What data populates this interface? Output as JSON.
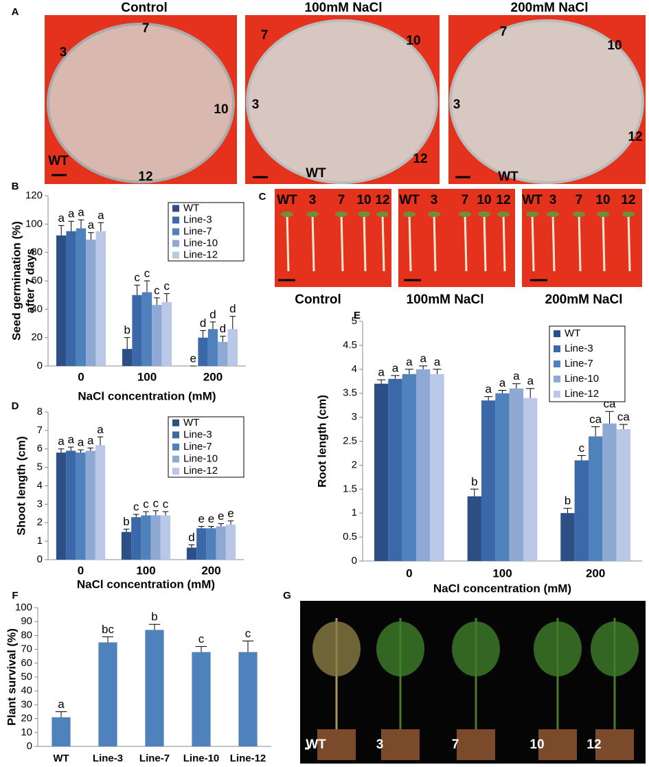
{
  "panel_labels": [
    "A",
    "B",
    "C",
    "D",
    "E",
    "F",
    "G"
  ],
  "photos": {
    "A": {
      "titles": [
        "Control",
        "100mM NaCl",
        "200mM NaCl"
      ],
      "plates": [
        [
          "7",
          "3",
          "10",
          "WT",
          "12"
        ],
        [
          "7",
          "10",
          "3",
          "12",
          "WT"
        ],
        [
          "7",
          "10",
          "3",
          "12",
          "WT"
        ]
      ]
    },
    "C": {
      "labels": [
        [
          "WT",
          "3",
          "7",
          "10",
          "12"
        ],
        [
          "WT",
          "3",
          "7",
          "10",
          "12"
        ],
        [
          "WT",
          "3",
          "7",
          "10",
          "12"
        ]
      ],
      "captions": [
        "Control",
        "100mM NaCl",
        "200mM NaCl"
      ]
    },
    "G": {
      "labels": [
        "WT",
        "3",
        "7",
        "10",
        "12"
      ]
    }
  },
  "chart_data": [
    {
      "type": "bar",
      "ylabel": [
        "Seed germination (%)",
        "after 7 days"
      ],
      "xlabel": "NaCl concentration (mM)",
      "categories": [
        "0",
        "100",
        "200"
      ],
      "ylim": [
        0,
        120
      ],
      "yticks": [
        0,
        20,
        40,
        60,
        80,
        100,
        120
      ],
      "legend": "upper right",
      "series": [
        {
          "name": "WT",
          "color": "#2e4f86",
          "values": [
            92,
            12,
            0
          ],
          "errors": [
            7,
            8,
            0
          ],
          "letters": [
            "a",
            "b",
            "e"
          ]
        },
        {
          "name": "Line-3",
          "color": "#3b68a8",
          "values": [
            95,
            50,
            20
          ],
          "errors": [
            7,
            7,
            5
          ],
          "letters": [
            "a",
            "c",
            "d"
          ]
        },
        {
          "name": "Line-7",
          "color": "#4f81bd",
          "values": [
            97,
            52,
            26
          ],
          "errors": [
            6,
            8,
            5
          ],
          "letters": [
            "a",
            "c",
            "d"
          ]
        },
        {
          "name": "Line-10",
          "color": "#8eaad4",
          "values": [
            89,
            43,
            17
          ],
          "errors": [
            5,
            5,
            4
          ],
          "letters": [
            "a",
            "c",
            "d"
          ]
        },
        {
          "name": "Line-12",
          "color": "#b8c8e6",
          "values": [
            95,
            45,
            26
          ],
          "errors": [
            6,
            6,
            9
          ],
          "letters": [
            "a",
            "c",
            "d"
          ]
        }
      ]
    },
    {
      "type": "bar",
      "ylabel": "Shoot length (cm)",
      "xlabel": "NaCl concentration (mM)",
      "categories": [
        "0",
        "100",
        "200"
      ],
      "ylim": [
        0,
        8
      ],
      "yticks": [
        0,
        1,
        2,
        3,
        4,
        5,
        6,
        7,
        8
      ],
      "legend": "upper right",
      "series": [
        {
          "name": "WT",
          "color": "#2e4f86",
          "values": [
            5.8,
            1.5,
            0.65
          ],
          "errors": [
            0.2,
            0.15,
            0.15
          ],
          "letters": [
            "a",
            "b",
            "d"
          ]
        },
        {
          "name": "Line-3",
          "color": "#3b68a8",
          "values": [
            5.9,
            2.3,
            1.7
          ],
          "errors": [
            0.2,
            0.15,
            0.1
          ],
          "letters": [
            "a",
            "c",
            "e"
          ]
        },
        {
          "name": "Line-7",
          "color": "#4f81bd",
          "values": [
            5.8,
            2.4,
            1.7
          ],
          "errors": [
            0.15,
            0.2,
            0.1
          ],
          "letters": [
            "a",
            "c",
            "e"
          ]
        },
        {
          "name": "Line-10",
          "color": "#8eaad4",
          "values": [
            5.9,
            2.4,
            1.8
          ],
          "errors": [
            0.15,
            0.25,
            0.15
          ],
          "letters": [
            "a",
            "c",
            "e"
          ]
        },
        {
          "name": "Line-12",
          "color": "#b8c8e6",
          "values": [
            6.2,
            2.4,
            1.9
          ],
          "errors": [
            0.45,
            0.2,
            0.2
          ],
          "letters": [
            "a",
            "c",
            "e"
          ]
        }
      ]
    },
    {
      "type": "bar",
      "ylabel": "Root length (cm)",
      "xlabel": "NaCl concentration (mM)",
      "categories": [
        "0",
        "100",
        "200"
      ],
      "ylim": [
        0,
        5
      ],
      "yticks": [
        0,
        0.5,
        1,
        1.5,
        2,
        2.5,
        3,
        3.5,
        4,
        4.5,
        5
      ],
      "legend": "upper right",
      "series": [
        {
          "name": "WT",
          "color": "#2e4f86",
          "values": [
            3.7,
            1.35,
            1.0
          ],
          "errors": [
            0.08,
            0.15,
            0.1
          ],
          "letters": [
            "a",
            "b",
            "b"
          ]
        },
        {
          "name": "Line-3",
          "color": "#3b68a8",
          "values": [
            3.8,
            3.35,
            2.1
          ],
          "errors": [
            0.07,
            0.08,
            0.1
          ],
          "letters": [
            "a",
            "a",
            "c"
          ]
        },
        {
          "name": "Line-7",
          "color": "#4f81bd",
          "values": [
            3.9,
            3.5,
            2.6
          ],
          "errors": [
            0.1,
            0.06,
            0.2
          ],
          "letters": [
            "a",
            "a",
            "ca"
          ]
        },
        {
          "name": "Line-10",
          "color": "#8eaad4",
          "values": [
            4.0,
            3.6,
            2.87
          ],
          "errors": [
            0.07,
            0.1,
            0.25
          ],
          "letters": [
            "a",
            "a",
            "ca"
          ]
        },
        {
          "name": "Line-12",
          "color": "#b8c8e6",
          "values": [
            3.9,
            3.4,
            2.75
          ],
          "errors": [
            0.1,
            0.2,
            0.1
          ],
          "letters": [
            "a",
            "a",
            "ca"
          ]
        }
      ]
    },
    {
      "type": "bar",
      "ylabel": "Plant survival (%)",
      "color": "#4f81bd",
      "categories": [
        "WT",
        "Line-3",
        "Line-7",
        "Line-10",
        "Line-12"
      ],
      "values": [
        21,
        75,
        84,
        68,
        68
      ],
      "errors": [
        4,
        4,
        4,
        4,
        8
      ],
      "letters": [
        "a",
        "bc",
        "b",
        "c",
        "c"
      ],
      "ylim": [
        0,
        100
      ],
      "yticks": [
        0,
        10,
        20,
        30,
        40,
        50,
        60,
        70,
        80,
        90,
        100
      ]
    }
  ]
}
